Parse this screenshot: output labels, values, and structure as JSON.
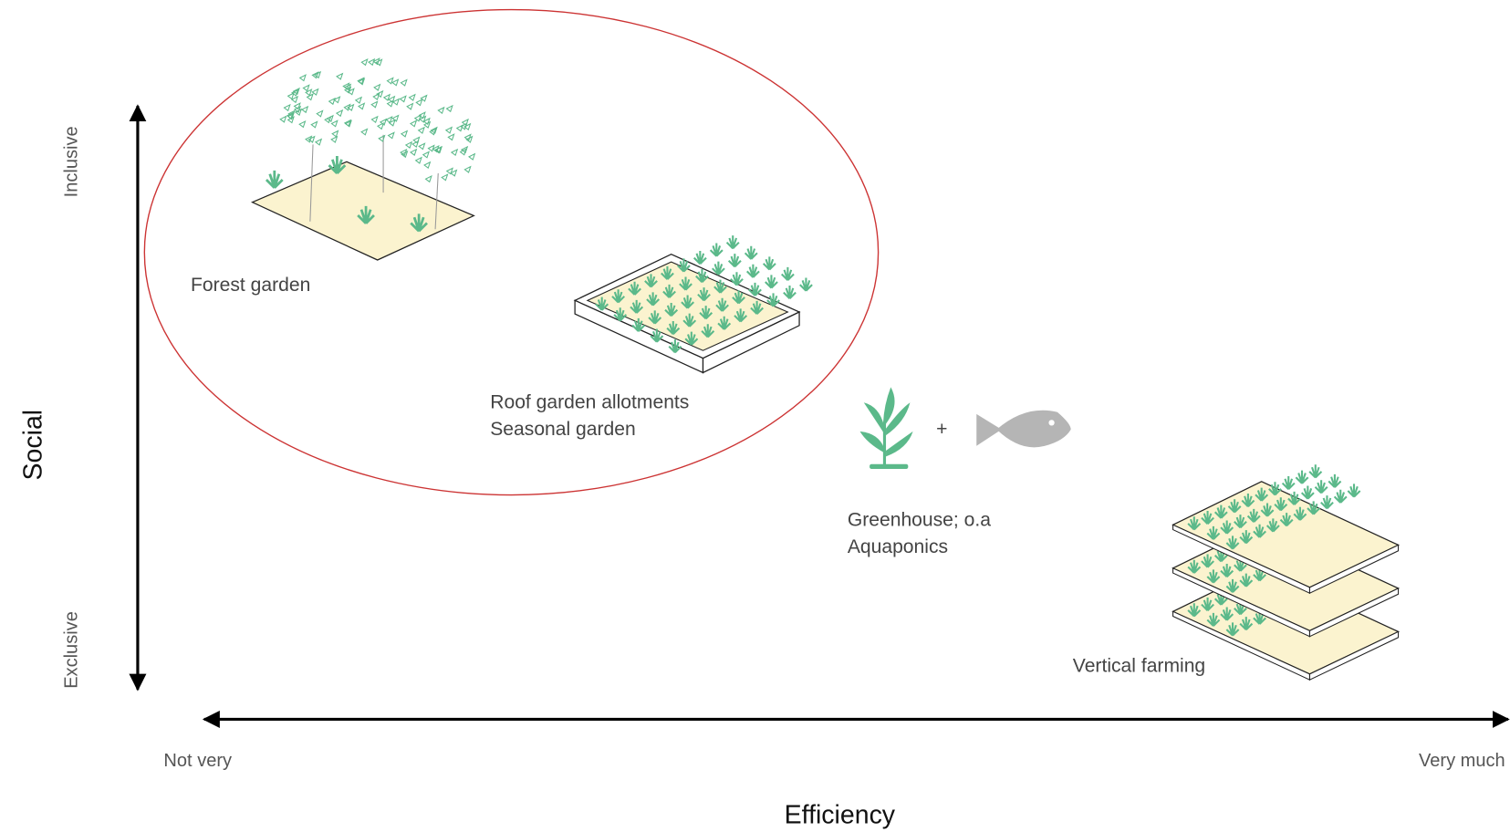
{
  "axes": {
    "x": {
      "label": "Efficiency",
      "min_label": "Not very",
      "max_label": "Very much"
    },
    "y": {
      "label": "Social",
      "min_label": "Exclusive",
      "max_label": "Inclusive"
    }
  },
  "items": [
    {
      "lines": [
        "Forest garden"
      ]
    },
    {
      "lines": [
        "Roof garden allotments",
        "Seasonal garden"
      ]
    },
    {
      "lines": [
        "Greenhouse; o.a",
        "Aquaponics"
      ],
      "joiner": "+"
    },
    {
      "lines": [
        "Vertical farming"
      ]
    }
  ]
}
